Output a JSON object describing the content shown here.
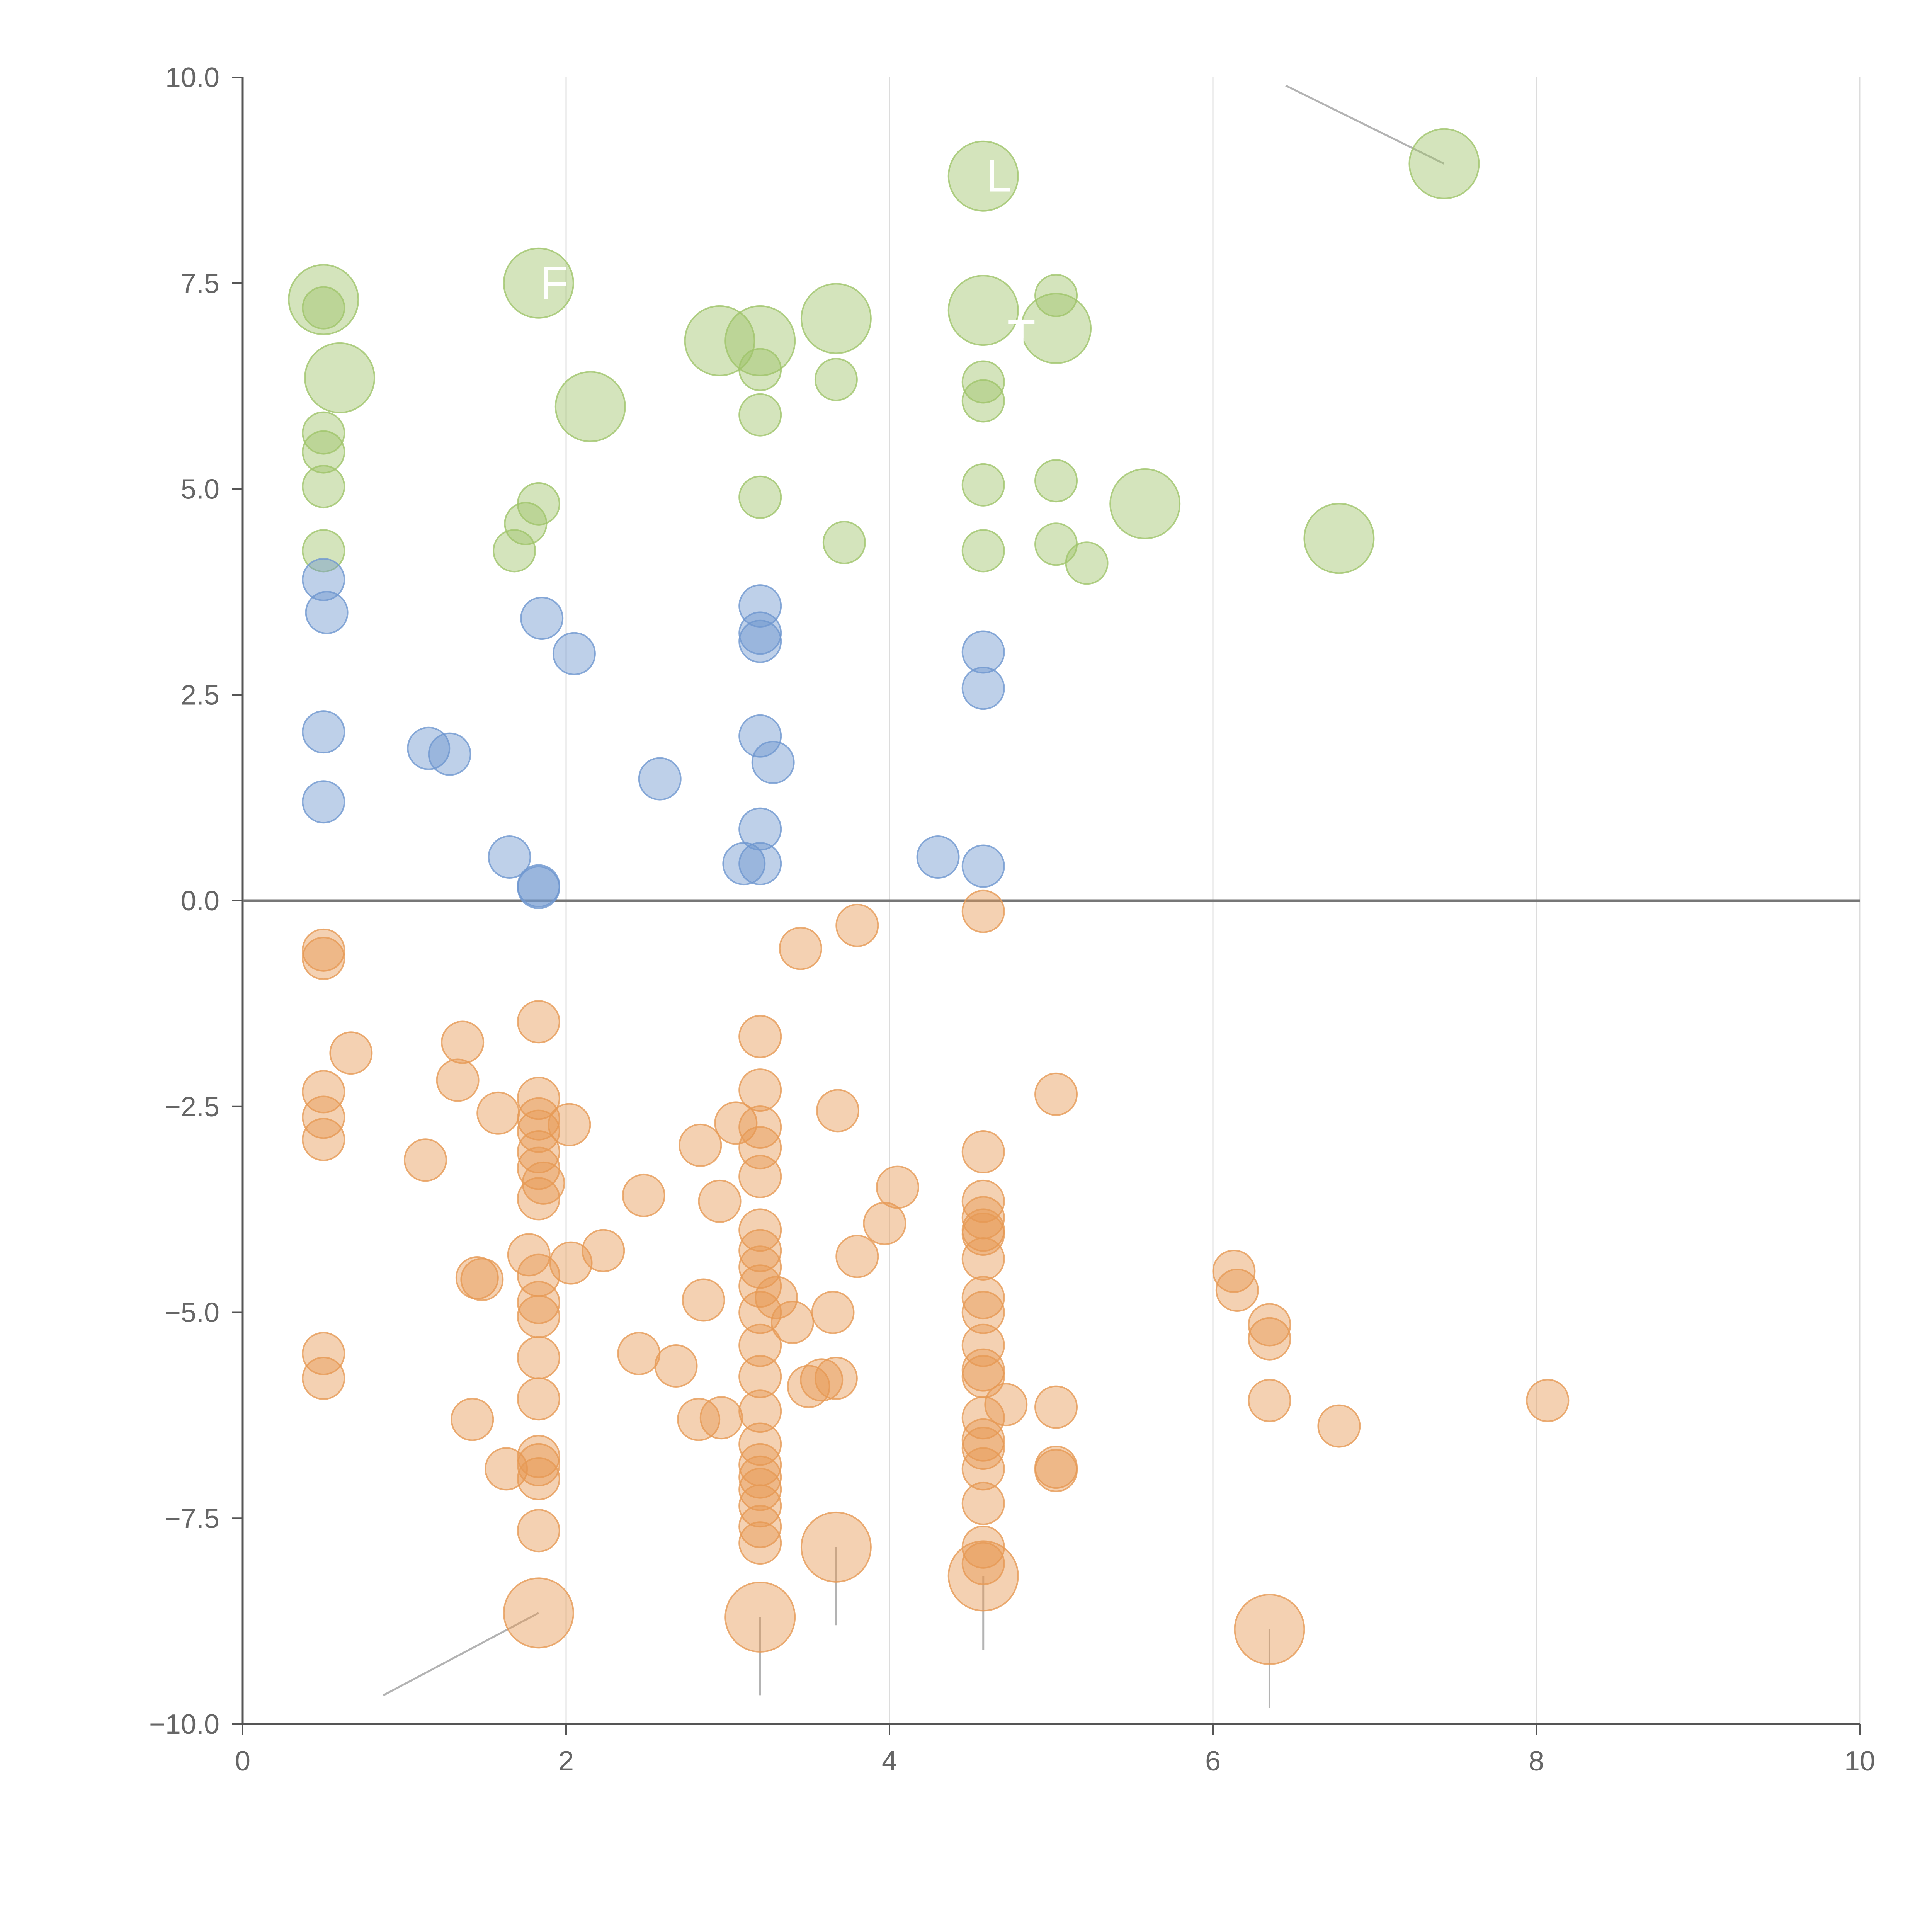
{
  "chart_data": {
    "type": "scatter",
    "title": "",
    "xlabel": "",
    "ylabel": "",
    "xlim": [
      0,
      10
    ],
    "ylim": [
      -10,
      10
    ],
    "x_ticks": [
      0,
      2,
      4,
      6,
      8,
      10
    ],
    "x_tick_labels": [
      "0",
      "2",
      "4",
      "6",
      "8",
      "10"
    ],
    "y_ticks": [
      10,
      7.5,
      5,
      2.5,
      0,
      -2.5,
      -5,
      -7.5,
      -10
    ],
    "y_tick_labels": [
      "10.0",
      "7.5",
      "5.0",
      "2.5",
      "0.0",
      "−2.5",
      "−5.0",
      "−7.5",
      "−10.0"
    ],
    "grid": "vertical",
    "zero_line": true,
    "colors": {
      "green": "#9fc46a",
      "blue": "#6f97cf",
      "orange": "#e69a55"
    },
    "series": [
      {
        "name": "green",
        "points": [
          [
            0.5,
            7.3,
            1
          ],
          [
            0.5,
            7.2,
            0.4
          ],
          [
            0.6,
            6.35,
            1
          ],
          [
            0.5,
            5.68,
            0.4
          ],
          [
            0.5,
            5.45,
            0.4
          ],
          [
            0.5,
            5.03,
            0.4
          ],
          [
            0.5,
            4.25,
            0.4
          ],
          [
            1.83,
            7.5,
            1
          ],
          [
            1.83,
            4.82,
            0.4
          ],
          [
            1.75,
            4.58,
            0.4
          ],
          [
            1.68,
            4.25,
            0.4
          ],
          [
            2.15,
            6.0,
            1
          ],
          [
            2.95,
            6.8,
            1
          ],
          [
            3.2,
            6.8,
            1
          ],
          [
            3.2,
            6.45,
            0.4
          ],
          [
            3.2,
            5.9,
            0.4
          ],
          [
            3.2,
            4.9,
            0.4
          ],
          [
            3.67,
            7.07,
            1
          ],
          [
            3.67,
            6.33,
            0.4
          ],
          [
            3.72,
            4.35,
            0.4
          ],
          [
            4.58,
            8.8,
            1
          ],
          [
            4.58,
            7.17,
            1
          ],
          [
            4.58,
            6.3,
            0.4
          ],
          [
            4.58,
            6.07,
            0.4
          ],
          [
            4.58,
            5.05,
            0.4
          ],
          [
            4.58,
            4.25,
            0.4
          ],
          [
            5.03,
            7.35,
            0.4
          ],
          [
            5.03,
            6.95,
            1
          ],
          [
            5.03,
            5.1,
            0.4
          ],
          [
            5.03,
            4.33,
            0.4
          ],
          [
            5.22,
            4.1,
            0.4
          ],
          [
            5.58,
            4.82,
            1
          ],
          [
            6.78,
            4.4,
            1
          ],
          [
            7.43,
            8.95,
            1
          ]
        ]
      },
      {
        "name": "blue",
        "points": [
          [
            0.5,
            3.9,
            0.4
          ],
          [
            0.52,
            3.5,
            0.4
          ],
          [
            0.5,
            2.05,
            0.4
          ],
          [
            0.5,
            1.2,
            0.4
          ],
          [
            1.15,
            1.85,
            0.4
          ],
          [
            1.28,
            1.78,
            0.4
          ],
          [
            1.65,
            0.53,
            0.4
          ],
          [
            1.83,
            0.18,
            0.4
          ],
          [
            1.83,
            0.16,
            0.4
          ],
          [
            1.85,
            3.43,
            0.4
          ],
          [
            2.05,
            3.0,
            0.4
          ],
          [
            2.58,
            1.48,
            0.4
          ],
          [
            3.1,
            0.45,
            0.4
          ],
          [
            3.2,
            0.45,
            0.4
          ],
          [
            3.2,
            0.87,
            0.4
          ],
          [
            3.2,
            2.0,
            0.4
          ],
          [
            3.28,
            1.68,
            0.4
          ],
          [
            3.2,
            3.15,
            0.4
          ],
          [
            3.2,
            3.25,
            0.4
          ],
          [
            3.2,
            3.58,
            0.4
          ],
          [
            4.3,
            0.53,
            0.4
          ],
          [
            4.58,
            0.42,
            0.4
          ],
          [
            4.58,
            2.58,
            0.4
          ],
          [
            4.58,
            3.02,
            0.4
          ]
        ]
      },
      {
        "name": "orange",
        "points": [
          [
            0.5,
            -0.6,
            0.4
          ],
          [
            0.5,
            -0.7,
            0.4
          ],
          [
            0.67,
            -1.85,
            0.4
          ],
          [
            0.5,
            -2.32,
            0.4
          ],
          [
            0.5,
            -2.63,
            0.4
          ],
          [
            0.5,
            -2.9,
            0.4
          ],
          [
            0.5,
            -5.5,
            0.4
          ],
          [
            0.5,
            -5.8,
            0.4
          ],
          [
            1.13,
            -3.15,
            0.4
          ],
          [
            1.33,
            -2.18,
            0.4
          ],
          [
            1.36,
            -1.72,
            0.4
          ],
          [
            1.42,
            -6.3,
            0.4
          ],
          [
            1.45,
            -4.58,
            0.4
          ],
          [
            1.48,
            -4.6,
            0.4
          ],
          [
            1.58,
            -2.58,
            0.4
          ],
          [
            1.63,
            -6.9,
            0.4
          ],
          [
            1.77,
            -4.3,
            0.4
          ],
          [
            1.83,
            -1.47,
            0.4
          ],
          [
            1.83,
            -2.4,
            0.4
          ],
          [
            1.83,
            -2.65,
            0.4
          ],
          [
            1.83,
            -2.8,
            0.4
          ],
          [
            1.83,
            -3.05,
            0.4
          ],
          [
            1.83,
            -3.25,
            0.4
          ],
          [
            1.83,
            -3.62,
            0.4
          ],
          [
            1.86,
            -3.43,
            0.4
          ],
          [
            1.83,
            -4.55,
            0.4
          ],
          [
            1.83,
            -4.88,
            0.4
          ],
          [
            1.83,
            -5.05,
            0.4
          ],
          [
            1.83,
            -5.55,
            0.4
          ],
          [
            1.83,
            -6.05,
            0.4
          ],
          [
            1.83,
            -6.75,
            0.4
          ],
          [
            1.83,
            -6.85,
            0.4
          ],
          [
            1.83,
            -7.02,
            0.4
          ],
          [
            1.83,
            -7.65,
            0.4
          ],
          [
            1.83,
            -8.65,
            1
          ],
          [
            2.02,
            -2.72,
            0.4
          ],
          [
            2.03,
            -4.4,
            0.4
          ],
          [
            2.23,
            -4.25,
            0.4
          ],
          [
            2.45,
            -5.5,
            0.4
          ],
          [
            2.48,
            -3.58,
            0.4
          ],
          [
            2.68,
            -5.65,
            0.4
          ],
          [
            2.82,
            -6.3,
            0.4
          ],
          [
            2.83,
            -2.97,
            0.4
          ],
          [
            2.85,
            -4.85,
            0.4
          ],
          [
            2.95,
            -3.65,
            0.4
          ],
          [
            2.96,
            -6.28,
            0.4
          ],
          [
            3.05,
            -2.7,
            0.4
          ],
          [
            3.2,
            -1.65,
            0.4
          ],
          [
            3.2,
            -2.3,
            0.4
          ],
          [
            3.2,
            -2.75,
            0.4
          ],
          [
            3.2,
            -3.0,
            0.4
          ],
          [
            3.2,
            -3.35,
            0.4
          ],
          [
            3.2,
            -4.0,
            0.4
          ],
          [
            3.2,
            -4.25,
            0.4
          ],
          [
            3.2,
            -4.45,
            0.4
          ],
          [
            3.2,
            -4.68,
            0.4
          ],
          [
            3.2,
            -5.0,
            0.4
          ],
          [
            3.2,
            -5.4,
            0.4
          ],
          [
            3.2,
            -5.78,
            0.4
          ],
          [
            3.2,
            -6.2,
            0.4
          ],
          [
            3.2,
            -6.6,
            0.4
          ],
          [
            3.2,
            -6.85,
            0.4
          ],
          [
            3.2,
            -7.0,
            0.4
          ],
          [
            3.2,
            -7.15,
            0.4
          ],
          [
            3.2,
            -7.35,
            0.4
          ],
          [
            3.2,
            -7.6,
            0.4
          ],
          [
            3.2,
            -7.8,
            0.4
          ],
          [
            3.2,
            -8.7,
            1
          ],
          [
            3.3,
            -4.82,
            0.4
          ],
          [
            3.4,
            -5.12,
            0.4
          ],
          [
            3.45,
            -0.58,
            0.4
          ],
          [
            3.5,
            -5.9,
            0.4
          ],
          [
            3.58,
            -5.82,
            0.4
          ],
          [
            3.67,
            -7.85,
            1
          ],
          [
            3.65,
            -5.0,
            0.4
          ],
          [
            3.67,
            -5.8,
            0.4
          ],
          [
            3.68,
            -2.55,
            0.4
          ],
          [
            3.8,
            -4.32,
            0.4
          ],
          [
            3.8,
            -0.3,
            0.4
          ],
          [
            3.97,
            -3.92,
            0.4
          ],
          [
            4.05,
            -3.48,
            0.4
          ],
          [
            4.58,
            -0.13,
            0.4
          ],
          [
            4.58,
            -3.05,
            0.4
          ],
          [
            4.58,
            -3.65,
            0.4
          ],
          [
            4.58,
            -3.85,
            0.4
          ],
          [
            4.58,
            -4.0,
            0.4
          ],
          [
            4.58,
            -4.05,
            0.4
          ],
          [
            4.58,
            -4.35,
            0.4
          ],
          [
            4.58,
            -4.82,
            0.4
          ],
          [
            4.58,
            -5.0,
            0.4
          ],
          [
            4.58,
            -5.4,
            0.4
          ],
          [
            4.58,
            -5.7,
            0.4
          ],
          [
            4.58,
            -5.78,
            0.4
          ],
          [
            4.58,
            -6.28,
            0.4
          ],
          [
            4.58,
            -6.55,
            0.4
          ],
          [
            4.58,
            -6.65,
            0.4
          ],
          [
            4.58,
            -6.9,
            0.4
          ],
          [
            4.58,
            -7.32,
            0.4
          ],
          [
            4.58,
            -7.85,
            0.4
          ],
          [
            4.58,
            -8.05,
            0.4
          ],
          [
            4.58,
            -8.2,
            1
          ],
          [
            4.72,
            -6.12,
            0.4
          ],
          [
            5.03,
            -2.35,
            0.4
          ],
          [
            5.03,
            -6.15,
            0.4
          ],
          [
            5.03,
            -6.88,
            0.4
          ],
          [
            5.03,
            -6.92,
            0.4
          ],
          [
            6.13,
            -4.5,
            0.4
          ],
          [
            6.15,
            -4.73,
            0.4
          ],
          [
            6.35,
            -5.15,
            0.4
          ],
          [
            6.35,
            -5.32,
            0.4
          ],
          [
            6.35,
            -6.07,
            0.4
          ],
          [
            6.35,
            -8.85,
            1
          ],
          [
            6.78,
            -6.38,
            0.4
          ],
          [
            8.07,
            -6.07,
            0.4
          ]
        ]
      }
    ],
    "annotations": [
      {
        "label": "L",
        "at": [
          4.58,
          8.8
        ]
      },
      {
        "label": "F",
        "at": [
          1.83,
          7.5
        ]
      },
      {
        "label": "T",
        "at": [
          4.72,
          6.85
        ]
      }
    ]
  }
}
